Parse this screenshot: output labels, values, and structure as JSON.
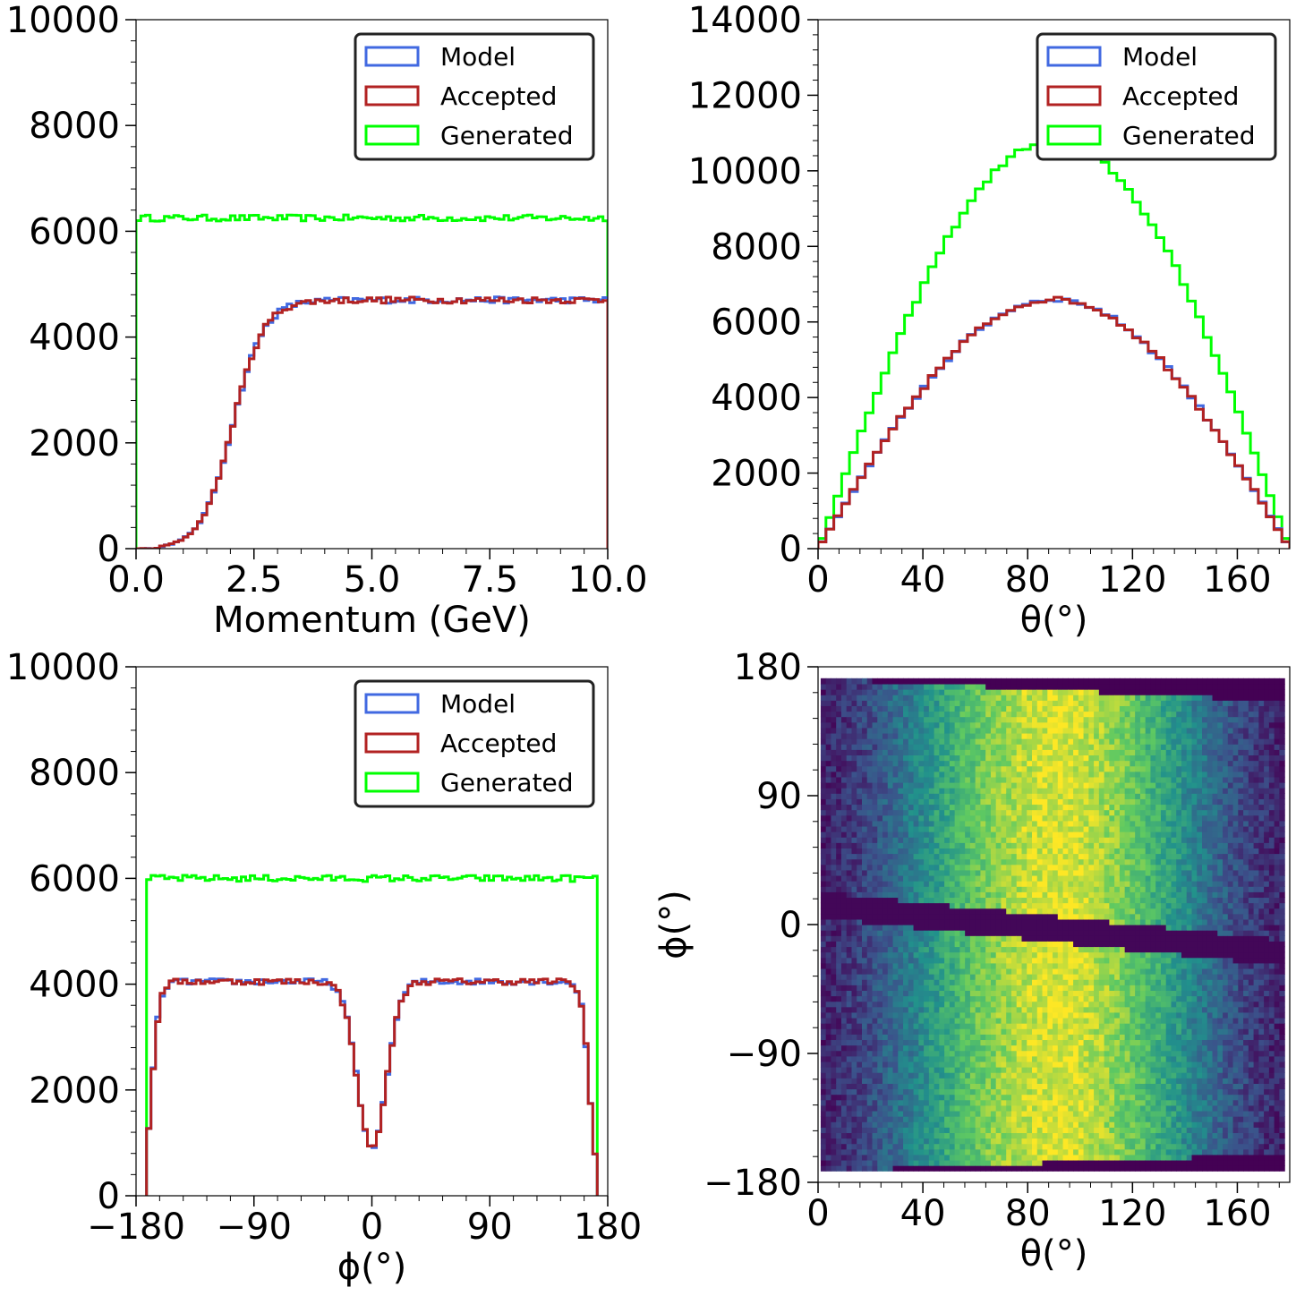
{
  "chart_data": [
    {
      "id": "momentum",
      "type": "step-histogram",
      "xlabel": "Momentum (GeV)",
      "ylabel": "",
      "xlim": [
        0,
        10
      ],
      "ylim": [
        0,
        10000
      ],
      "xticks": [
        0,
        2.5,
        5,
        7.5,
        10
      ],
      "xtick_labels": [
        "0.0",
        "2.5",
        "5.0",
        "7.5",
        "10.0"
      ],
      "yticks": [
        0,
        2000,
        4000,
        6000,
        8000,
        10000
      ],
      "ytick_labels": [
        "0",
        "2000",
        "4000",
        "6000",
        "8000",
        "10000"
      ],
      "legend": {
        "placement": "top-right",
        "entries": [
          "Model",
          "Accepted",
          "Generated"
        ]
      },
      "series": [
        {
          "name": "Model",
          "color": "#4169e1",
          "shape": "momentum_accepted",
          "bins": 100,
          "x_range": [
            0,
            10
          ]
        },
        {
          "name": "Accepted",
          "color": "#b22222",
          "shape": "momentum_accepted",
          "bins": 100,
          "x_range": [
            0,
            10
          ]
        },
        {
          "name": "Generated",
          "color": "#00ff00",
          "shape": "flat",
          "level": 6250,
          "bins": 100,
          "x_range": [
            0,
            10
          ]
        }
      ]
    },
    {
      "id": "theta",
      "type": "step-histogram",
      "xlabel": "θ(°)",
      "ylabel": "",
      "xlim": [
        0,
        180
      ],
      "ylim": [
        0,
        14000
      ],
      "xticks": [
        0,
        40,
        80,
        120,
        160
      ],
      "xtick_labels": [
        "0",
        "40",
        "80",
        "120",
        "160"
      ],
      "yticks": [
        0,
        2000,
        4000,
        6000,
        8000,
        10000,
        12000,
        14000
      ],
      "ytick_labels": [
        "0",
        "2000",
        "4000",
        "6000",
        "8000",
        "10000",
        "12000",
        "14000"
      ],
      "legend": {
        "placement": "top-right",
        "entries": [
          "Model",
          "Accepted",
          "Generated"
        ]
      },
      "series": [
        {
          "name": "Model",
          "color": "#4169e1",
          "shape": "sine",
          "peak": 6600,
          "bins": 60,
          "x_range": [
            0,
            180
          ]
        },
        {
          "name": "Accepted",
          "color": "#b22222",
          "shape": "sine",
          "peak": 6600,
          "bins": 60,
          "x_range": [
            0,
            180
          ]
        },
        {
          "name": "Generated",
          "color": "#00ff00",
          "shape": "sine",
          "peak": 10800,
          "bins": 60,
          "x_range": [
            0,
            180
          ]
        }
      ]
    },
    {
      "id": "phi",
      "type": "step-histogram",
      "xlabel": "ϕ(°)",
      "ylabel": "",
      "xlim": [
        -180,
        180
      ],
      "ylim": [
        0,
        10000
      ],
      "xticks": [
        -180,
        -90,
        0,
        90,
        180
      ],
      "xtick_labels": [
        "−180",
        "−90",
        "0",
        "90",
        "180"
      ],
      "yticks": [
        0,
        2000,
        4000,
        6000,
        8000,
        10000
      ],
      "ytick_labels": [
        "0",
        "2000",
        "4000",
        "6000",
        "8000",
        "10000"
      ],
      "legend": {
        "placement": "top-right",
        "entries": [
          "Model",
          "Accepted",
          "Generated"
        ]
      },
      "series": [
        {
          "name": "Model",
          "color": "#4169e1",
          "shape": "phi_accepted",
          "bins": 100,
          "x_range": [
            -172,
            172
          ]
        },
        {
          "name": "Accepted",
          "color": "#b22222",
          "shape": "phi_accepted",
          "bins": 100,
          "x_range": [
            -172,
            172
          ]
        },
        {
          "name": "Generated",
          "color": "#00ff00",
          "shape": "flat",
          "level": 6000,
          "bins": 100,
          "x_range": [
            -172,
            172
          ]
        }
      ]
    },
    {
      "id": "theta_phi",
      "type": "heatmap",
      "xlabel": "θ(°)",
      "ylabel": "ϕ(°)",
      "xlim": [
        0,
        180
      ],
      "ylim": [
        -180,
        180
      ],
      "xticks": [
        0,
        40,
        80,
        120,
        160
      ],
      "xtick_labels": [
        "0",
        "40",
        "80",
        "120",
        "160"
      ],
      "yticks": [
        -180,
        -90,
        0,
        90,
        180
      ],
      "ytick_labels": [
        "−180",
        "−90",
        "0",
        "90",
        "180"
      ],
      "colormap": "viridis",
      "x_bins": 90,
      "y_bins": 90,
      "data_x_range": [
        1,
        178
      ],
      "data_y_range": [
        -172,
        172
      ],
      "gap_center_phi_at_theta0": 14,
      "gap_center_phi_at_theta180": -20,
      "gap_width_deg": 18,
      "peak_theta": 95
    }
  ]
}
